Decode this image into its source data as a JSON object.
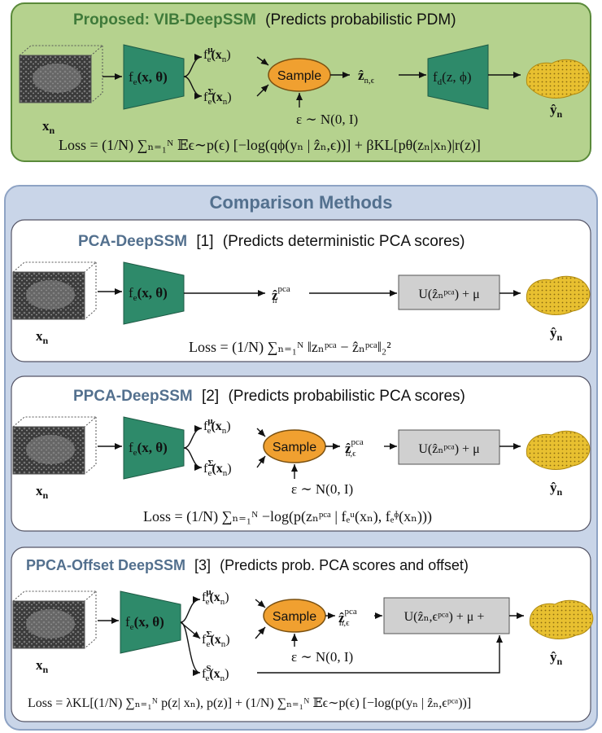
{
  "colors": {
    "proposed_panel": "#b5d28e",
    "proposed_border": "#5a8a3a",
    "comparison_panel": "#c9d5e8",
    "comparison_border": "#8ea3c4",
    "encoder": "#2e8a6a",
    "sample": "#f0a030",
    "pca_box": "#d0d0d0",
    "title_blue": "#53708e",
    "title_green": "#3f7a3a",
    "shape": "#e8c030"
  },
  "proposed": {
    "title": "Proposed: VIB-DeepSSM",
    "subtitle": "(Predicts probabilistic PDM)",
    "input_label": "x",
    "input_sub": "n",
    "encoder": "f",
    "encoder_sub": "e",
    "encoder_args": "(x, θ)",
    "mu_out": "f",
    "mu_sup": "μ",
    "mu_args": "(x",
    "sigma_out": "f",
    "sigma_sup": "Σ",
    "sample": "Sample",
    "z_hat": "ẑ",
    "z_sub": "n,ϵ",
    "eps": "ε ∼ N(0, I)",
    "decoder": "f",
    "decoder_sub": "d",
    "decoder_args": "(z, ϕ)",
    "output": "ŷ",
    "output_sub": "n",
    "loss": "Loss = (1/N) ∑ₙ₌₁ᴺ 𝔼ϵ∼p(ϵ) [−log(qϕ(yₙ | ẑₙ,ϵ))] + βKL[pθ(zₙ|xₙ)|r(z)]"
  },
  "comparison": {
    "title": "Comparison Methods",
    "pca": {
      "title": "PCA-DeepSSM",
      "ref": "[1]",
      "subtitle": "(Predicts deterministic PCA scores)",
      "z_hat": "ẑ",
      "z_sup": "pca",
      "z_sub": "n",
      "recon": "U(ẑₙᵖᶜᵃ) + μ",
      "loss": "Loss = (1/N) ∑ₙ₌₁ᴺ ‖zₙᵖᶜᵃ − ẑₙᵖᶜᵃ‖₂²"
    },
    "ppca": {
      "title": "PPCA-DeepSSM",
      "ref": "[2]",
      "subtitle": "(Predicts probabilistic PCA scores)",
      "sample": "Sample",
      "eps": "ε ∼ N(0, I)",
      "z_sup": "pca",
      "z_sub": "n,ϵ",
      "recon": "U(ẑₙᵖᶜᵃ) + μ",
      "loss": "Loss = (1/N) ∑ₙ₌₁ᴺ −log(p(zₙᵖᶜᵃ | fₑᵘ(xₙ), fₑᶲ(xₙ)))"
    },
    "offset": {
      "title": "PPCA-Offset DeepSSM",
      "ref": "[3]",
      "subtitle": "(Predicts prob. PCA scores and offset)",
      "sample": "Sample",
      "eps": "ε ∼ N(0, I)",
      "s_sup": "S",
      "z_sup": "pca",
      "z_sub": "n,ϵ",
      "recon": "U(ẑₙ,ϵᵖᶜᵃ) + μ +",
      "loss": "Loss = λKL[(1/N) ∑ₙ₌₁ᴺ p(z| xₙ), p(z)] + (1/N) ∑ₙ₌₁ᴺ 𝔼ϵ∼p(ϵ) [−log(p(yₙ | ẑₙ,ϵᵖᶜᵃ))]"
    }
  }
}
